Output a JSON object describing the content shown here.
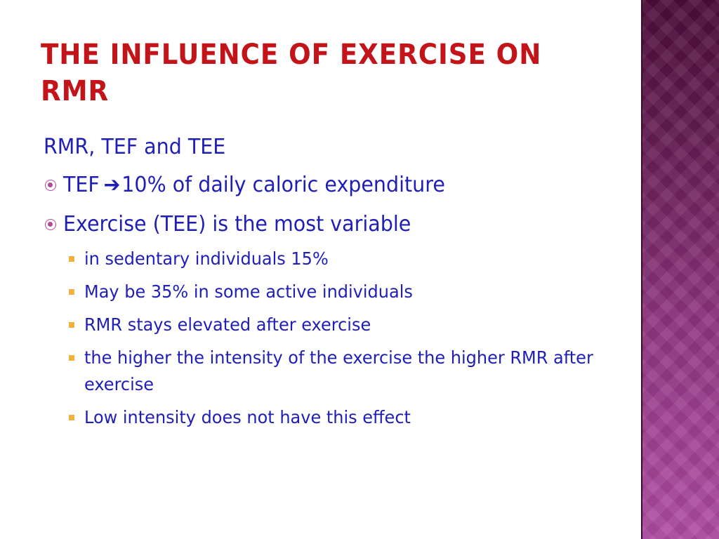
{
  "slide": {
    "title": "THE INFLUENCE OF EXERCISE ON RMR",
    "subhead": "RMR, TEF and TEE",
    "bullets": [
      {
        "pre": "TEF",
        "arrow": "➔",
        "post": "10% of daily caloric expenditure"
      },
      {
        "text": "Exercise (TEE) is the most variable",
        "subitems": [
          "in sedentary individuals 15%",
          "May be 35% in some active individuals",
          "RMR stays elevated after exercise",
          "the higher the intensity of the exercise the higher RMR after exercise",
          "Low intensity does not have this effect"
        ]
      }
    ]
  },
  "colors": {
    "title": "#c3141a",
    "body_text": "#1f1fb8",
    "level1_bullet": "#b24a9b",
    "level2_bullet": "#f2b33d",
    "side_band": "#7a2a6a"
  },
  "icons": {
    "level1_bullet": "target-circle-icon",
    "level2_bullet": "square-bullet-icon"
  }
}
